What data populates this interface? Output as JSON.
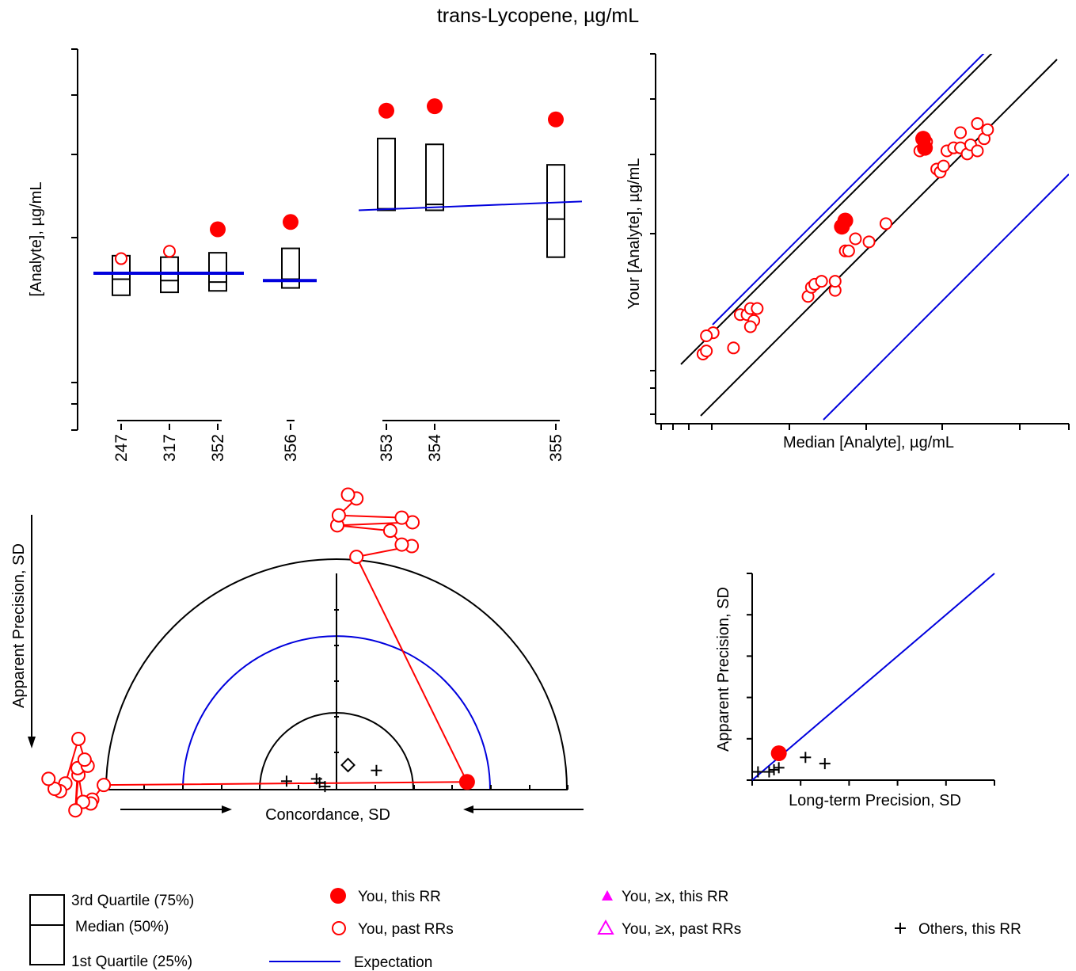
{
  "title": "trans-Lycopene, µg/mL",
  "colors": {
    "you": "#ff0000",
    "expectation": "#0000dd",
    "others": "#000000",
    "magenta": "#ff00ff",
    "axis": "#000000"
  },
  "chart_data": [
    {
      "id": "boxplot",
      "type": "box",
      "ylabel": "[Analyte], µg/mL",
      "categories": [
        "247",
        "317",
        "352",
        "356",
        "353",
        "354",
        "355"
      ],
      "boxes": [
        {
          "label": "247",
          "q1": 4.6,
          "median": 5.15,
          "q3": 5.95
        },
        {
          "label": "317",
          "q1": 4.7,
          "median": 5.1,
          "q3": 5.9
        },
        {
          "label": "352",
          "q1": 4.75,
          "median": 5.05,
          "q3": 6.05
        },
        {
          "label": "356",
          "q1": 4.85,
          "median": 5.15,
          "q3": 6.2
        },
        {
          "label": "353",
          "q1": 7.5,
          "median": 7.55,
          "q3": 9.95
        },
        {
          "label": "354",
          "q1": 7.5,
          "median": 7.7,
          "q3": 9.75
        },
        {
          "label": "355",
          "q1": 5.9,
          "median": 7.2,
          "q3": 9.05
        }
      ],
      "you_this_rr": [
        {
          "label": "352",
          "y": 6.85
        },
        {
          "label": "356",
          "y": 7.1
        },
        {
          "label": "353",
          "y": 10.9
        },
        {
          "label": "354",
          "y": 11.05
        },
        {
          "label": "355",
          "y": 10.6
        }
      ],
      "you_past_rrs": [
        {
          "label": "247",
          "y": 5.85
        },
        {
          "label": "317",
          "y": 6.1
        }
      ],
      "expectation_segments": [
        {
          "from": "247",
          "to": "352",
          "y0": 5.35,
          "y1": 5.35
        },
        {
          "from": "356",
          "to": "356",
          "y0": 5.1,
          "y1": 5.1
        },
        {
          "from": "353",
          "to": "355",
          "y0": 7.5,
          "y1": 7.8
        }
      ]
    },
    {
      "id": "youden",
      "type": "scatter",
      "xlabel": "Median [Analyte], µg/mL",
      "ylabel": "Your [Analyte], µg/mL",
      "xlim": [
        0,
        12.2
      ],
      "ylim": [
        0,
        12.2
      ],
      "you_this_rr": [
        [
          7.9,
          9.4
        ],
        [
          7.95,
          9.1
        ],
        [
          5.5,
          6.5
        ],
        [
          5.6,
          6.7
        ]
      ],
      "you_past_rrs": [
        [
          1.4,
          2.3
        ],
        [
          1.5,
          2.4
        ],
        [
          1.7,
          3.0
        ],
        [
          1.5,
          2.9
        ],
        [
          2.3,
          2.5
        ],
        [
          2.5,
          3.6
        ],
        [
          2.7,
          3.6
        ],
        [
          2.8,
          3.8
        ],
        [
          3.0,
          3.8
        ],
        [
          2.9,
          3.4
        ],
        [
          2.8,
          3.2
        ],
        [
          4.5,
          4.2
        ],
        [
          4.6,
          4.5
        ],
        [
          4.7,
          4.6
        ],
        [
          4.9,
          4.7
        ],
        [
          5.3,
          4.4
        ],
        [
          5.3,
          4.7
        ],
        [
          5.6,
          5.7
        ],
        [
          5.7,
          5.7
        ],
        [
          5.9,
          6.1
        ],
        [
          6.3,
          6.0
        ],
        [
          6.8,
          6.6
        ],
        [
          7.8,
          9.0
        ],
        [
          8.0,
          9.3
        ],
        [
          8.3,
          8.4
        ],
        [
          8.4,
          8.3
        ],
        [
          8.5,
          8.5
        ],
        [
          8.6,
          9.0
        ],
        [
          8.8,
          9.1
        ],
        [
          9.0,
          9.1
        ],
        [
          9.0,
          9.6
        ],
        [
          9.2,
          8.9
        ],
        [
          9.3,
          9.2
        ],
        [
          9.5,
          9.0
        ],
        [
          9.5,
          9.9
        ],
        [
          9.7,
          9.4
        ],
        [
          9.8,
          9.7
        ]
      ],
      "identity_line": true,
      "bands": "black and blue parallel lines around identity"
    },
    {
      "id": "target",
      "type": "scatter",
      "xlabel": "Concordance, SD",
      "ylabel": "Apparent Precision, SD",
      "you_this_rr": [
        [
          1.7,
          0.1
        ]
      ],
      "you_history_a": [
        [
          0.26,
          3.03
        ],
        [
          0.98,
          3.17
        ],
        [
          0.85,
          3.19
        ],
        [
          0.7,
          3.37
        ],
        [
          0.01,
          3.44
        ],
        [
          0.99,
          3.48
        ],
        [
          0.85,
          3.54
        ],
        [
          0.03,
          3.57
        ],
        [
          0.26,
          3.79
        ],
        [
          0.15,
          3.84
        ]
      ],
      "you_history_b": [
        [
          -3.03,
          0.06
        ],
        [
          -3.18,
          -0.13
        ],
        [
          -3.2,
          -0.18
        ],
        [
          -3.3,
          -0.16
        ],
        [
          -3.36,
          0.19
        ],
        [
          -3.4,
          -0.27
        ],
        [
          -3.37,
          0.28
        ],
        [
          -3.24,
          0.31
        ],
        [
          -3.28,
          0.39
        ],
        [
          -3.36,
          0.66
        ],
        [
          -3.53,
          0.08
        ],
        [
          -3.6,
          -0.02
        ],
        [
          -3.67,
          0.01
        ],
        [
          -3.75,
          0.14
        ]
      ],
      "others_this_rr": [
        [
          -0.65,
          0.11
        ],
        [
          -0.26,
          0.14
        ],
        [
          -0.22,
          0.09
        ],
        [
          -0.15,
          0.04
        ],
        [
          0.52,
          0.25
        ]
      ],
      "consensus": [
        0.15,
        0.32
      ],
      "radii": [
        1.0,
        2.0,
        3.0
      ]
    },
    {
      "id": "precision",
      "type": "scatter",
      "xlabel": "Long-term Precision, SD",
      "ylabel": "Apparent Precision, SD",
      "xlim": [
        0,
        5
      ],
      "ylim": [
        0,
        5
      ],
      "you_this_rr": [
        [
          0.55,
          0.65
        ]
      ],
      "others_this_rr": [
        [
          0.12,
          0.2
        ],
        [
          0.35,
          0.2
        ],
        [
          0.45,
          0.25
        ],
        [
          0.55,
          0.3
        ],
        [
          1.1,
          0.55
        ],
        [
          1.5,
          0.4
        ]
      ]
    }
  ],
  "legend": {
    "q3": "3rd Quartile (75%)",
    "median": "Median (50%)",
    "q1": "1st Quartile (25%)",
    "you_this": "You, this RR",
    "you_past": "You, past RRs",
    "expectation": "Expectation",
    "you_ge_this": "You, ≥x, this RR",
    "you_ge_past": "You, ≥x, past RRs",
    "others_this": "Others, this RR"
  }
}
